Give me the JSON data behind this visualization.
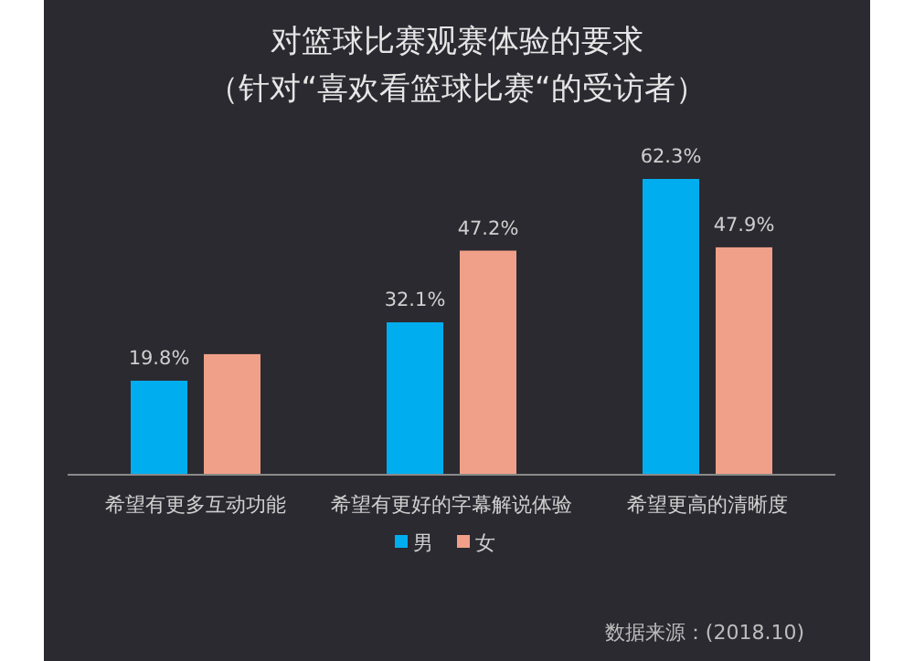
{
  "chart_data": {
    "type": "bar",
    "title": "对篮球比赛观赛体验的要求",
    "subtitle": "（针对“喜欢看篮球比赛“的受访者）",
    "categories": [
      "希望有更多互动功能",
      "希望有更好的字幕解说体验",
      "希望更高的清晰度"
    ],
    "series": [
      {
        "name": "男",
        "color": "#00aeef",
        "values": [
          19.8,
          32.1,
          62.3
        ],
        "value_labels": [
          "19.8%",
          "32.1%",
          "62.3%"
        ]
      },
      {
        "name": "女",
        "color": "#f0a088",
        "values": [
          25.4,
          47.2,
          47.9
        ],
        "value_labels": [
          null,
          "47.2%",
          "47.9%"
        ]
      }
    ],
    "legend": "bottom",
    "annotations": [
      "数据来源：(2018.10)"
    ]
  }
}
